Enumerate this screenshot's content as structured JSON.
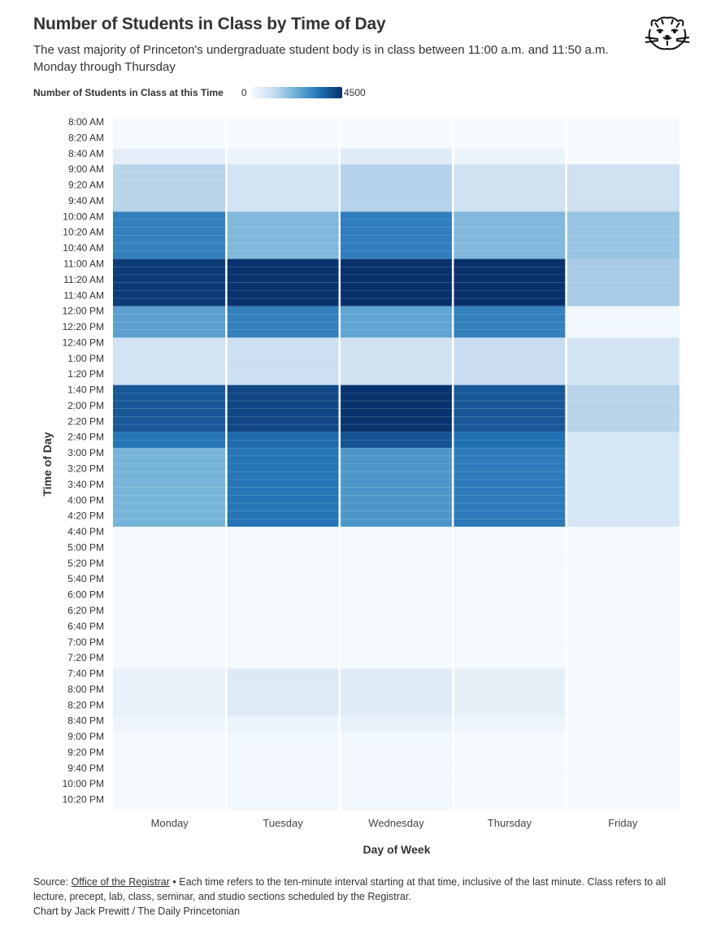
{
  "header": {
    "title": "Number of Students in Class by Time of Day",
    "subtitle": "The vast majority of Princeton's undergraduate student body is in class between 11:00 a.m. and 11:50 a.m. Monday through Thursday"
  },
  "logo_icon": "tiger-head-logo-icon",
  "legend": {
    "title": "Number of Students in Class at this Time",
    "min_label": "0",
    "max_label": "4500",
    "colors": [
      "#f7fbff",
      "#c6dbef",
      "#6baed6",
      "#2171b5",
      "#08306b"
    ]
  },
  "chart_data": {
    "type": "heatmap",
    "xlabel": "Day of Week",
    "ylabel": "Time of Day",
    "x_categories": [
      "Monday",
      "Tuesday",
      "Wednesday",
      "Thursday",
      "Friday"
    ],
    "y_categories": [
      "8:00 AM",
      "8:10 AM",
      "8:20 AM",
      "8:30 AM",
      "8:40 AM",
      "8:50 AM",
      "9:00 AM",
      "9:10 AM",
      "9:20 AM",
      "9:30 AM",
      "9:40 AM",
      "9:50 AM",
      "10:00 AM",
      "10:10 AM",
      "10:20 AM",
      "10:30 AM",
      "10:40 AM",
      "10:50 AM",
      "11:00 AM",
      "11:10 AM",
      "11:20 AM",
      "11:30 AM",
      "11:40 AM",
      "11:50 AM",
      "12:00 PM",
      "12:10 PM",
      "12:20 PM",
      "12:30 PM",
      "12:40 PM",
      "12:50 PM",
      "1:00 PM",
      "1:10 PM",
      "1:20 PM",
      "1:30 PM",
      "1:40 PM",
      "1:50 PM",
      "2:00 PM",
      "2:10 PM",
      "2:20 PM",
      "2:30 PM",
      "2:40 PM",
      "2:50 PM",
      "3:00 PM",
      "3:10 PM",
      "3:20 PM",
      "3:30 PM",
      "3:40 PM",
      "3:50 PM",
      "4:00 PM",
      "4:10 PM",
      "4:20 PM",
      "4:30 PM",
      "4:40 PM",
      "4:50 PM",
      "5:00 PM",
      "5:10 PM",
      "5:20 PM",
      "5:30 PM",
      "5:40 PM",
      "5:50 PM",
      "6:00 PM",
      "6:10 PM",
      "6:20 PM",
      "6:30 PM",
      "6:40 PM",
      "6:50 PM",
      "7:00 PM",
      "7:10 PM",
      "7:20 PM",
      "7:30 PM",
      "7:40 PM",
      "7:50 PM",
      "8:00 PM",
      "8:10 PM",
      "8:20 PM",
      "8:30 PM",
      "8:40 PM",
      "8:50 PM",
      "9:00 PM",
      "9:10 PM",
      "9:20 PM",
      "9:30 PM",
      "9:40 PM",
      "9:50 PM",
      "10:00 PM",
      "10:10 PM",
      "10:20 PM",
      "10:30 PM"
    ],
    "y_tick_labels": [
      "8:00 AM",
      "8:20 AM",
      "8:40 AM",
      "9:00 AM",
      "9:20 AM",
      "9:40 AM",
      "10:00 AM",
      "10:20 AM",
      "10:40 AM",
      "11:00 AM",
      "11:20 AM",
      "11:40 AM",
      "12:00 PM",
      "12:20 PM",
      "12:40 PM",
      "1:00 PM",
      "1:20 PM",
      "1:40 PM",
      "2:00 PM",
      "2:20 PM",
      "2:40 PM",
      "3:00 PM",
      "3:20 PM",
      "3:40 PM",
      "4:00 PM",
      "4:20 PM",
      "4:40 PM",
      "5:00 PM",
      "5:20 PM",
      "5:40 PM",
      "6:00 PM",
      "6:20 PM",
      "6:40 PM",
      "7:00 PM",
      "7:20 PM",
      "7:40 PM",
      "8:00 PM",
      "8:20 PM",
      "8:40 PM",
      "9:00 PM",
      "9:20 PM",
      "9:40 PM",
      "10:00 PM",
      "10:20 PM"
    ],
    "value_range": [
      0,
      4500
    ],
    "values_note": "estimated",
    "values": {
      "Monday": [
        50,
        50,
        50,
        50,
        450,
        450,
        1300,
        1300,
        1300,
        1300,
        1300,
        1300,
        3100,
        3100,
        3100,
        3100,
        3100,
        3100,
        4300,
        4300,
        4300,
        4300,
        4300,
        4300,
        2500,
        2500,
        2500,
        2500,
        850,
        850,
        850,
        850,
        850,
        850,
        3800,
        3800,
        3800,
        3800,
        3800,
        3800,
        3300,
        3300,
        2100,
        2100,
        2100,
        2100,
        2100,
        2100,
        2100,
        2100,
        2100,
        2100,
        60,
        60,
        60,
        60,
        60,
        60,
        60,
        60,
        60,
        60,
        60,
        60,
        60,
        60,
        60,
        60,
        60,
        60,
        350,
        350,
        350,
        350,
        350,
        350,
        200,
        200,
        80,
        80,
        80,
        80,
        80,
        80,
        80,
        80,
        80,
        80
      ],
      "Tuesday": [
        50,
        50,
        50,
        50,
        300,
        300,
        850,
        850,
        850,
        850,
        850,
        850,
        2000,
        2000,
        2000,
        2000,
        2000,
        2000,
        4450,
        4450,
        4450,
        4450,
        4450,
        4450,
        3100,
        3100,
        3100,
        3100,
        1000,
        1000,
        1000,
        1000,
        1000,
        1000,
        4100,
        4100,
        4100,
        4100,
        4100,
        4100,
        3500,
        3500,
        3300,
        3300,
        3300,
        3300,
        3300,
        3300,
        3300,
        3300,
        3300,
        3300,
        60,
        60,
        60,
        60,
        60,
        60,
        60,
        60,
        60,
        60,
        60,
        60,
        60,
        60,
        60,
        60,
        60,
        60,
        600,
        600,
        600,
        600,
        600,
        600,
        250,
        250,
        150,
        150,
        150,
        150,
        150,
        150,
        150,
        150,
        150,
        150
      ],
      "Wednesday": [
        50,
        50,
        50,
        50,
        550,
        550,
        1350,
        1350,
        1350,
        1350,
        1350,
        1350,
        3150,
        3150,
        3150,
        3150,
        3150,
        3150,
        4480,
        4480,
        4480,
        4480,
        4480,
        4480,
        2400,
        2400,
        2400,
        2400,
        900,
        900,
        900,
        900,
        900,
        900,
        4450,
        4450,
        4450,
        4450,
        4450,
        4450,
        3900,
        3900,
        2700,
        2700,
        2700,
        2700,
        2700,
        2700,
        2700,
        2700,
        2700,
        2700,
        60,
        60,
        60,
        60,
        60,
        60,
        60,
        60,
        60,
        60,
        60,
        60,
        60,
        60,
        60,
        60,
        60,
        60,
        550,
        550,
        550,
        550,
        550,
        550,
        350,
        350,
        150,
        150,
        150,
        150,
        150,
        150,
        150,
        150,
        150,
        150
      ],
      "Thursday": [
        50,
        50,
        50,
        50,
        250,
        250,
        900,
        900,
        900,
        900,
        900,
        900,
        2000,
        2000,
        2000,
        2000,
        2000,
        2000,
        4480,
        4480,
        4480,
        4480,
        4480,
        4480,
        3100,
        3100,
        3100,
        3100,
        1050,
        1050,
        1050,
        1050,
        1050,
        1050,
        3800,
        3800,
        3800,
        3800,
        3800,
        3800,
        3400,
        3400,
        3200,
        3200,
        3200,
        3200,
        3200,
        3200,
        3200,
        3200,
        3200,
        3200,
        60,
        60,
        60,
        60,
        60,
        60,
        60,
        60,
        60,
        60,
        60,
        60,
        60,
        60,
        60,
        60,
        60,
        60,
        400,
        400,
        400,
        400,
        400,
        400,
        220,
        220,
        80,
        80,
        80,
        80,
        80,
        80,
        80,
        80,
        80,
        80
      ],
      "Friday": [
        50,
        50,
        50,
        50,
        60,
        60,
        950,
        950,
        950,
        950,
        950,
        950,
        1700,
        1700,
        1700,
        1700,
        1700,
        1700,
        1500,
        1500,
        1500,
        1500,
        1500,
        1500,
        150,
        150,
        150,
        150,
        800,
        800,
        800,
        800,
        800,
        800,
        1300,
        1300,
        1300,
        1300,
        1300,
        1300,
        750,
        750,
        750,
        750,
        750,
        750,
        750,
        750,
        750,
        750,
        750,
        750,
        60,
        60,
        60,
        60,
        60,
        60,
        60,
        60,
        60,
        60,
        60,
        60,
        60,
        60,
        60,
        60,
        60,
        60,
        60,
        60,
        60,
        60,
        60,
        60,
        60,
        60,
        60,
        60,
        60,
        60,
        60,
        60,
        60,
        60,
        60,
        60
      ]
    }
  },
  "footer": {
    "source_prefix": "Source: ",
    "source_link": "Office of the Registrar",
    "source_rest": " • Each time refers to the ten-minute interval starting at that time, inclusive of the last minute. Class refers to all lecture, precept, lab, class, seminar, and studio sections scheduled by the Registrar.",
    "credit": "Chart by Jack Prewitt / The Daily Princetonian"
  }
}
